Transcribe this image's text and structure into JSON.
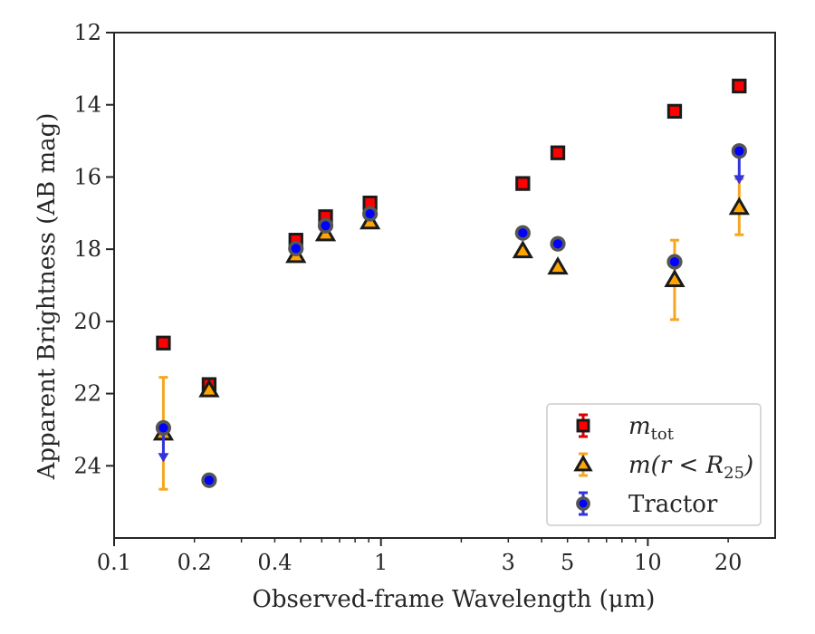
{
  "chart_data": {
    "type": "scatter",
    "xlabel": "Observed-frame Wavelength (μm)",
    "ylabel": "Apparent Brightness (AB mag)",
    "xscale": "log",
    "xlim": [
      0.1,
      30
    ],
    "ylim": [
      26.0,
      12.0
    ],
    "y_inverted": true,
    "grid": false,
    "legend_position": "lower-right",
    "x_ticks": [
      0.1,
      0.2,
      0.4,
      1,
      3,
      5,
      10,
      20
    ],
    "x_tick_labels": [
      "0.1",
      "0.2",
      "0.4",
      "1",
      "3",
      "5",
      "10",
      "20"
    ],
    "y_ticks": [
      12,
      14,
      16,
      18,
      20,
      22,
      24
    ],
    "y_tick_labels": [
      "12",
      "14",
      "16",
      "18",
      "20",
      "22",
      "24"
    ],
    "series": [
      {
        "name": "m_tot",
        "legend_main": "m",
        "legend_sub": "tot",
        "marker": "square",
        "color": "#ff0000",
        "edge_color": "#1a1a1a",
        "error_color": "#dd0000",
        "points": [
          {
            "x": 0.153,
            "y": 20.6,
            "err": 0.05
          },
          {
            "x": 0.227,
            "y": 21.75,
            "err": 0.05
          },
          {
            "x": 0.48,
            "y": 17.75,
            "err": 0.05
          },
          {
            "x": 0.62,
            "y": 17.1,
            "err": 0.05
          },
          {
            "x": 0.91,
            "y": 16.72,
            "err": 0.05
          },
          {
            "x": 3.4,
            "y": 16.18,
            "err": 0.05
          },
          {
            "x": 4.6,
            "y": 15.33,
            "err": 0.05
          },
          {
            "x": 12.6,
            "y": 14.18,
            "err": 0.05
          },
          {
            "x": 22.0,
            "y": 13.48,
            "err": 0.05
          }
        ]
      },
      {
        "name": "m(r < R25)",
        "legend_main": "m(r < R",
        "legend_sub": "25",
        "legend_tail": ")",
        "marker": "triangle",
        "color": "#ffa500",
        "edge_color": "#1a1a1a",
        "error_color": "#f5a623",
        "points": [
          {
            "x": 0.153,
            "y": 23.1,
            "err_low": 21.55,
            "err_high": 24.65
          },
          {
            "x": 0.227,
            "y": 21.9,
            "err": 0.05
          },
          {
            "x": 0.48,
            "y": 18.18,
            "err": 0.05
          },
          {
            "x": 0.62,
            "y": 17.58,
            "err": 0.05
          },
          {
            "x": 0.91,
            "y": 17.25,
            "err": 0.05
          },
          {
            "x": 3.4,
            "y": 18.05,
            "err": 0.05
          },
          {
            "x": 4.6,
            "y": 18.5,
            "err": 0.05
          },
          {
            "x": 12.6,
            "y": 18.85,
            "err_low": 17.75,
            "err_high": 19.95
          },
          {
            "x": 22.0,
            "y": 16.85,
            "err_low": 16.05,
            "err_high": 17.6
          }
        ]
      },
      {
        "name": "Tractor",
        "marker": "circle",
        "color": "#0000ff",
        "edge_color": "#555555",
        "error_color": "#3333dd",
        "points": [
          {
            "x": 0.153,
            "y": 22.95,
            "upper_limit_to": 23.85
          },
          {
            "x": 0.227,
            "y": 24.4,
            "err": 0.05
          },
          {
            "x": 0.48,
            "y": 17.98,
            "err": 0.05
          },
          {
            "x": 0.62,
            "y": 17.35,
            "err": 0.05
          },
          {
            "x": 0.91,
            "y": 17.02,
            "err": 0.05
          },
          {
            "x": 3.4,
            "y": 17.55,
            "err": 0.05
          },
          {
            "x": 4.6,
            "y": 17.85,
            "err": 0.05
          },
          {
            "x": 12.6,
            "y": 18.35,
            "err": 0.05
          },
          {
            "x": 22.0,
            "y": 15.28,
            "upper_limit_to": 16.15
          }
        ]
      }
    ]
  }
}
